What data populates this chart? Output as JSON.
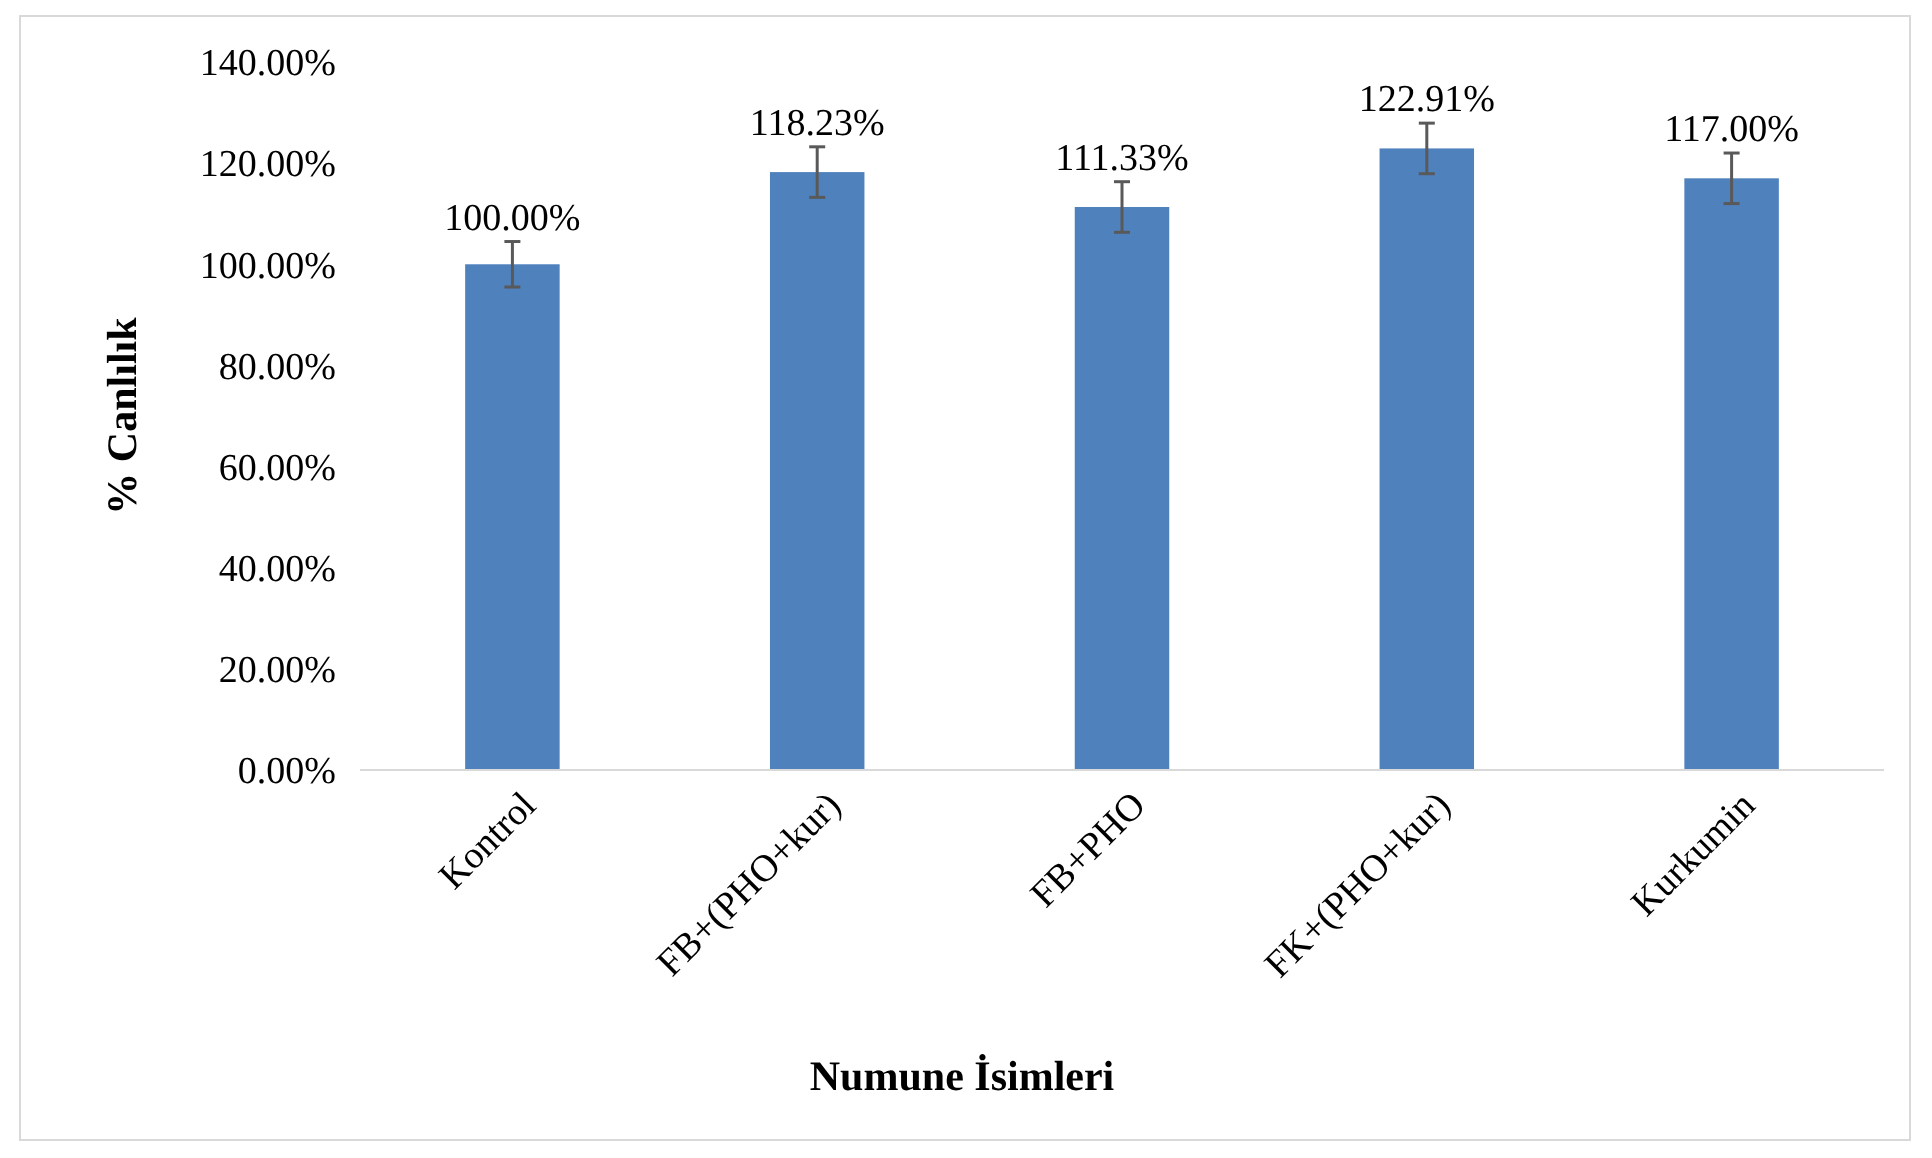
{
  "chart_data": {
    "type": "bar",
    "categories": [
      "Kontrol",
      "FB+(PHO+kur)",
      "FB+PHO",
      "FK+(PHO+kur)",
      "Kurkumin"
    ],
    "values": [
      100,
      118.23,
      111.33,
      122.91,
      117.0
    ],
    "value_labels": [
      "100.00%",
      "118.23%",
      "111.33%",
      "122.91%",
      "117.00%"
    ],
    "errors": [
      4.5,
      5,
      5,
      5,
      5
    ],
    "color": "#4f81bd",
    "xlabel": "Numune İsimleri",
    "ylabel": "% Canlılık",
    "ylim": [
      0,
      140
    ],
    "yticks": [
      {
        "value": 0,
        "label": "0.00%"
      },
      {
        "value": 20,
        "label": "20.00%"
      },
      {
        "value": 40,
        "label": "40.00%"
      },
      {
        "value": 60,
        "label": "60.00%"
      },
      {
        "value": 80,
        "label": "80.00%"
      },
      {
        "value": 100,
        "label": "100.00%"
      },
      {
        "value": 120,
        "label": "120.00%"
      },
      {
        "value": 140,
        "label": "140.00%"
      }
    ],
    "grid": false
  }
}
